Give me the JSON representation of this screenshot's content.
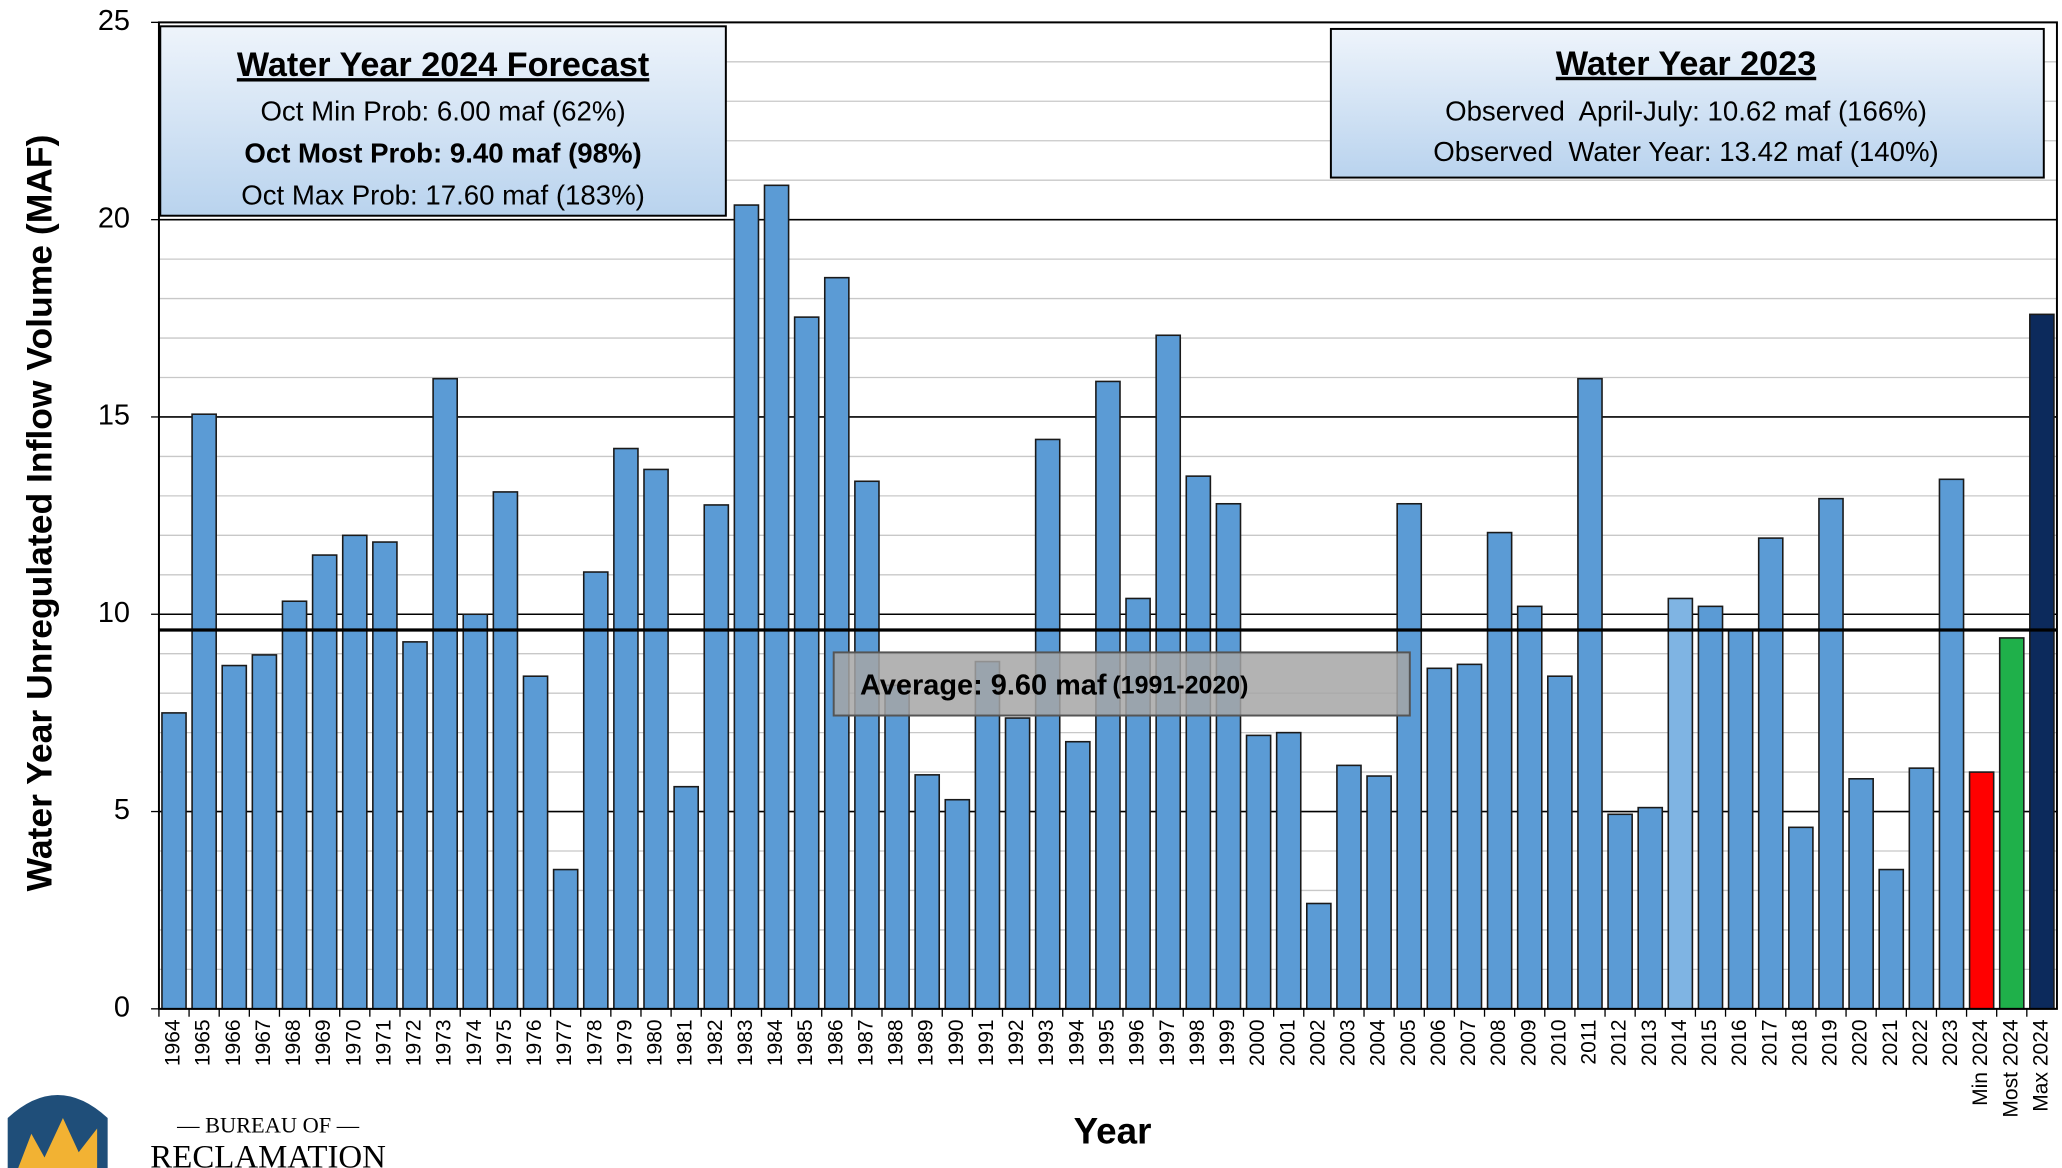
{
  "chart_data": {
    "type": "bar",
    "ylabel": "Water Year Unregulated Inflow Volume (MAF)",
    "xlabel": "Year",
    "categories": [
      "1964",
      "1965",
      "1966",
      "1967",
      "1968",
      "1969",
      "1970",
      "1971",
      "1972",
      "1973",
      "1974",
      "1975",
      "1976",
      "1977",
      "1978",
      "1979",
      "1980",
      "1981",
      "1982",
      "1983",
      "1984",
      "1985",
      "1986",
      "1987",
      "1988",
      "1989",
      "1990",
      "1991",
      "1992",
      "1993",
      "1994",
      "1995",
      "1996",
      "1997",
      "1998",
      "1999",
      "2000",
      "2001",
      "2002",
      "2003",
      "2004",
      "2005",
      "2006",
      "2007",
      "2008",
      "2009",
      "2010",
      "2011",
      "2012",
      "2013",
      "2014",
      "2015",
      "2016",
      "2017",
      "2018",
      "2019",
      "2020",
      "2021",
      "2022",
      "2023",
      "Min 2024",
      "Most 2024",
      "Max 2024"
    ],
    "values": [
      7.5,
      15.07,
      8.7,
      8.97,
      10.33,
      11.5,
      12.0,
      11.83,
      9.3,
      15.97,
      10.0,
      13.1,
      8.43,
      3.53,
      11.07,
      14.2,
      13.67,
      5.63,
      12.77,
      20.37,
      20.87,
      17.53,
      18.53,
      13.37,
      8.2,
      5.93,
      5.3,
      8.8,
      7.37,
      14.43,
      6.77,
      15.9,
      10.4,
      17.07,
      13.5,
      12.8,
      6.93,
      7.0,
      2.67,
      6.17,
      5.9,
      12.8,
      8.63,
      8.73,
      12.07,
      10.2,
      8.43,
      15.97,
      4.93,
      5.1,
      10.4,
      10.2,
      9.6,
      11.93,
      4.6,
      12.93,
      5.83,
      3.53,
      6.1,
      13.42,
      6.0,
      9.4,
      17.6
    ],
    "colors": [
      "#5b9bd5",
      "#5b9bd5",
      "#5b9bd5",
      "#5b9bd5",
      "#5b9bd5",
      "#5b9bd5",
      "#5b9bd5",
      "#5b9bd5",
      "#5b9bd5",
      "#5b9bd5",
      "#5b9bd5",
      "#5b9bd5",
      "#5b9bd5",
      "#5b9bd5",
      "#5b9bd5",
      "#5b9bd5",
      "#5b9bd5",
      "#5b9bd5",
      "#5b9bd5",
      "#5b9bd5",
      "#5b9bd5",
      "#5b9bd5",
      "#5b9bd5",
      "#5b9bd5",
      "#5b9bd5",
      "#5b9bd5",
      "#5b9bd5",
      "#5b9bd5",
      "#5b9bd5",
      "#5b9bd5",
      "#5b9bd5",
      "#5b9bd5",
      "#5b9bd5",
      "#5b9bd5",
      "#5b9bd5",
      "#5b9bd5",
      "#5b9bd5",
      "#5b9bd5",
      "#5b9bd5",
      "#5b9bd5",
      "#5b9bd5",
      "#5b9bd5",
      "#5b9bd5",
      "#5b9bd5",
      "#5b9bd5",
      "#5b9bd5",
      "#5b9bd5",
      "#5b9bd5",
      "#5b9bd5",
      "#5b9bd5",
      "#7fb4e3",
      "#5b9bd5",
      "#5b9bd5",
      "#5b9bd5",
      "#5b9bd5",
      "#5b9bd5",
      "#5b9bd5",
      "#5b9bd5",
      "#5b9bd5",
      "#5b9bd5",
      "#ff0000",
      "#1fb04a",
      "#0c2a5c"
    ],
    "ylim": [
      0,
      25
    ],
    "yticks": [
      0,
      5,
      10,
      15,
      20,
      25
    ],
    "minor_yticks": [
      1,
      2,
      3,
      4,
      6,
      7,
      8,
      9,
      11,
      12,
      13,
      14,
      16,
      17,
      18,
      19,
      21,
      22,
      23,
      24
    ],
    "grid": true,
    "average": 9.6,
    "average_label": [
      "Average: 9.60 maf",
      "(1991-2020)"
    ],
    "forecast_box": {
      "title": "Water Year 2024 Forecast",
      "lines": [
        "Oct Min Prob: 6.00 maf (62%)",
        "Oct Most Prob: 9.40 maf (98%)",
        "Oct Max Prob: 17.60 maf (183%)"
      ]
    },
    "observed_box": {
      "title": "Water Year 2023",
      "lines": [
        "Observed  April-July: 10.62 maf (166%)",
        "Observed  Water Year: 13.42 maf (140%)"
      ]
    }
  },
  "logo": [
    "— BUREAU OF —",
    "RECLAMATION"
  ]
}
